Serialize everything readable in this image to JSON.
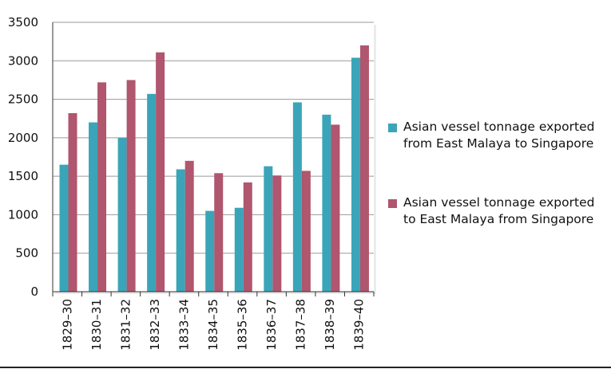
{
  "chart_data": {
    "type": "bar",
    "title": "",
    "xlabel": "",
    "ylabel": "",
    "ylim": [
      0,
      3500
    ],
    "yticks": [
      0,
      500,
      1000,
      1500,
      2000,
      2500,
      3000,
      3500
    ],
    "grid": true,
    "legend_position": "right",
    "categories": [
      "1829–30",
      "1830–31",
      "1831–32",
      "1832–33",
      "1833–34",
      "1834–35",
      "1835–36",
      "1836–37",
      "1837–38",
      "1838–39",
      "1839–40"
    ],
    "series": [
      {
        "name": "Asian vessel tonnage exported from East Malaya to Singapore",
        "color": "#3aa5b8",
        "values": [
          1650,
          2200,
          2000,
          2570,
          1590,
          1050,
          1090,
          1630,
          2460,
          2300,
          3040
        ]
      },
      {
        "name": "Asian vessel tonnage exported to East Malaya from Singapore",
        "color": "#b0566e",
        "values": [
          2320,
          2720,
          2750,
          3110,
          1700,
          1540,
          1420,
          1510,
          1570,
          2170,
          3200
        ]
      }
    ]
  }
}
